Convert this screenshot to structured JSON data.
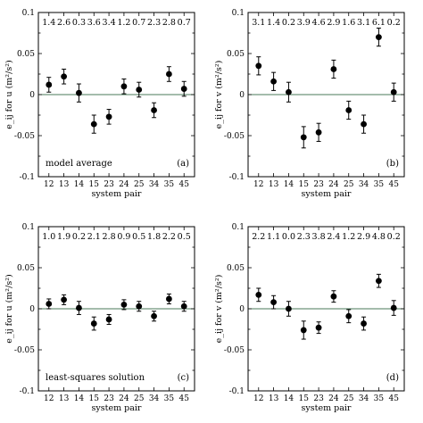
{
  "chart_data": [
    {
      "type": "scatter",
      "panel": "(a)",
      "title": "",
      "label": "model average",
      "xlabel": "system pair",
      "ylabel": "e_ij for u (m²/s²)",
      "ylim": [
        -0.1,
        0.1
      ],
      "yticks": [
        "0.1",
        "0.05",
        "0",
        "-0.05",
        "-0.1"
      ],
      "categories": [
        "12",
        "13",
        "14",
        "15",
        "23",
        "24",
        "25",
        "34",
        "35",
        "45"
      ],
      "values": [
        0.012,
        0.022,
        0.002,
        -0.036,
        -0.027,
        0.01,
        0.006,
        -0.019,
        0.025,
        0.007
      ],
      "errors": [
        0.009,
        0.009,
        0.011,
        0.011,
        0.009,
        0.009,
        0.009,
        0.009,
        0.009,
        0.009
      ],
      "top_labels": [
        "1.4",
        "2.6",
        "0.3",
        "3.6",
        "3.4",
        "1.2",
        "0.7",
        "2.3",
        "2.8",
        "0.7"
      ]
    },
    {
      "type": "scatter",
      "panel": "(b)",
      "title": "",
      "label": "",
      "xlabel": "system pair",
      "ylabel": "e_ij for v (m²/s²)",
      "ylim": [
        -0.1,
        0.1
      ],
      "yticks": [
        "0.1",
        "0.05",
        "0",
        "-0.05",
        "-0.1"
      ],
      "categories": [
        "12",
        "13",
        "14",
        "15",
        "23",
        "24",
        "25",
        "34",
        "35",
        "45"
      ],
      "values": [
        0.035,
        0.016,
        0.003,
        -0.052,
        -0.046,
        0.031,
        -0.019,
        -0.036,
        0.07,
        0.003
      ],
      "errors": [
        0.011,
        0.011,
        0.012,
        0.013,
        0.011,
        0.011,
        0.011,
        0.011,
        0.011,
        0.011
      ],
      "top_labels": [
        "3.1",
        "1.4",
        "0.2",
        "3.9",
        "4.6",
        "2.9",
        "1.6",
        "3.1",
        "6.1",
        "0.2"
      ]
    },
    {
      "type": "scatter",
      "panel": "(c)",
      "title": "",
      "label": "least-squares solution",
      "xlabel": "system pair",
      "ylabel": "e_ij for u (m²/s²)",
      "ylim": [
        -0.1,
        0.1
      ],
      "yticks": [
        "0.1",
        "0.05",
        "0",
        "-0.05",
        "-0.1"
      ],
      "categories": [
        "12",
        "13",
        "14",
        "15",
        "23",
        "24",
        "25",
        "34",
        "35",
        "45"
      ],
      "values": [
        0.006,
        0.011,
        0.001,
        -0.018,
        -0.013,
        0.005,
        0.003,
        -0.009,
        0.012,
        0.003
      ],
      "errors": [
        0.006,
        0.006,
        0.008,
        0.008,
        0.006,
        0.006,
        0.006,
        0.006,
        0.006,
        0.006
      ],
      "top_labels": [
        "1.0",
        "1.9",
        "0.2",
        "2.1",
        "2.8",
        "0.9",
        "0.5",
        "1.8",
        "2.2",
        "0.5"
      ]
    },
    {
      "type": "scatter",
      "panel": "(d)",
      "title": "",
      "label": "",
      "xlabel": "system pair",
      "ylabel": "e_ij for v (m²/s²)",
      "ylim": [
        -0.1,
        0.1
      ],
      "yticks": [
        "0.1",
        "0.05",
        "0",
        "-0.05",
        "-0.1"
      ],
      "categories": [
        "12",
        "13",
        "14",
        "15",
        "23",
        "24",
        "25",
        "34",
        "35",
        "45"
      ],
      "values": [
        0.017,
        0.008,
        0.0,
        -0.026,
        -0.023,
        0.015,
        -0.009,
        -0.018,
        0.034,
        0.001
      ],
      "errors": [
        0.008,
        0.008,
        0.009,
        0.011,
        0.007,
        0.007,
        0.008,
        0.008,
        0.008,
        0.009
      ],
      "top_labels": [
        "2.2",
        "1.1",
        "0.0",
        "2.3",
        "3.8",
        "2.4",
        "1.2",
        "2.9",
        "4.8",
        "0.2"
      ]
    }
  ]
}
